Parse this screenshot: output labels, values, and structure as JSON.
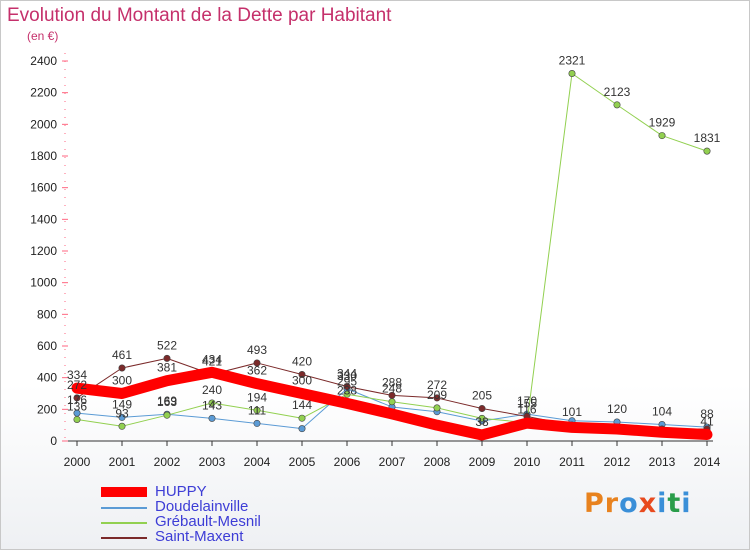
{
  "title": "Evolution du Montant de la Dette par Habitant",
  "subtitle": "(en €)",
  "brand": {
    "text": "Proxiti",
    "letter_colors": [
      "#e8821e",
      "#e8821e",
      "#3a8fd8",
      "#e84a1e",
      "#3a8fd8",
      "#2a9d4a",
      "#3a8fd8"
    ]
  },
  "chart_data": {
    "type": "line",
    "x": [
      "2000",
      "2001",
      "2002",
      "2003",
      "2004",
      "2005",
      "2006",
      "2007",
      "2008",
      "2009",
      "2010",
      "2011",
      "2012",
      "2013",
      "2014"
    ],
    "ylim": [
      0,
      2400
    ],
    "yticks": [
      "0",
      "200",
      "400",
      "600",
      "800",
      "1000",
      "1200",
      "1400",
      "1600",
      "1800",
      "2000",
      "2200",
      "2400"
    ],
    "grid": false,
    "legend_position": "bottom-left",
    "series": [
      {
        "name": "Doudelainville",
        "color": "#5b9bd5",
        "width": 1,
        "values": [
          176,
          149,
          169,
          143,
          111,
          78,
          330,
          215,
          185,
          126,
          170,
          128,
          120,
          104,
          88
        ],
        "labels": [
          "176",
          "149",
          "169",
          "143",
          "111",
          "",
          "330",
          "",
          "",
          "",
          "170",
          "",
          "120",
          "104",
          "88"
        ]
      },
      {
        "name": "Grébault-Mesnil",
        "color": "#92d050",
        "width": 1,
        "values": [
          136,
          93,
          163,
          240,
          194,
          144,
          295,
          248,
          209,
          143,
          116,
          2321,
          2123,
          1929,
          1831
        ],
        "labels": [
          "136",
          "93",
          "163",
          "240",
          "194",
          "144",
          "295",
          "248",
          "209",
          "",
          "116",
          "2321",
          "2123",
          "1929",
          "1831"
        ]
      },
      {
        "name": "Saint-Maxent",
        "color": "#7b2a2a",
        "width": 1,
        "values": [
          272,
          461,
          522,
          421,
          493,
          420,
          344,
          288,
          272,
          205,
          155,
          101,
          86,
          76,
          76
        ],
        "labels": [
          "272",
          "461",
          "522",
          "421",
          "493",
          "420",
          "344",
          "288",
          "272",
          "205",
          "155",
          "101",
          "",
          "",
          ""
        ]
      },
      {
        "name": "HUPPY",
        "color": "#ff0000",
        "width": 11,
        "values": [
          334,
          300,
          381,
          434,
          362,
          300,
          238,
          171,
          100,
          38,
          113,
          86,
          76,
          55,
          41
        ],
        "labels": [
          "334",
          "300",
          "381",
          "434",
          "362",
          "300",
          "238",
          "",
          "",
          "38",
          "",
          "",
          "",
          "",
          "41"
        ]
      }
    ]
  }
}
